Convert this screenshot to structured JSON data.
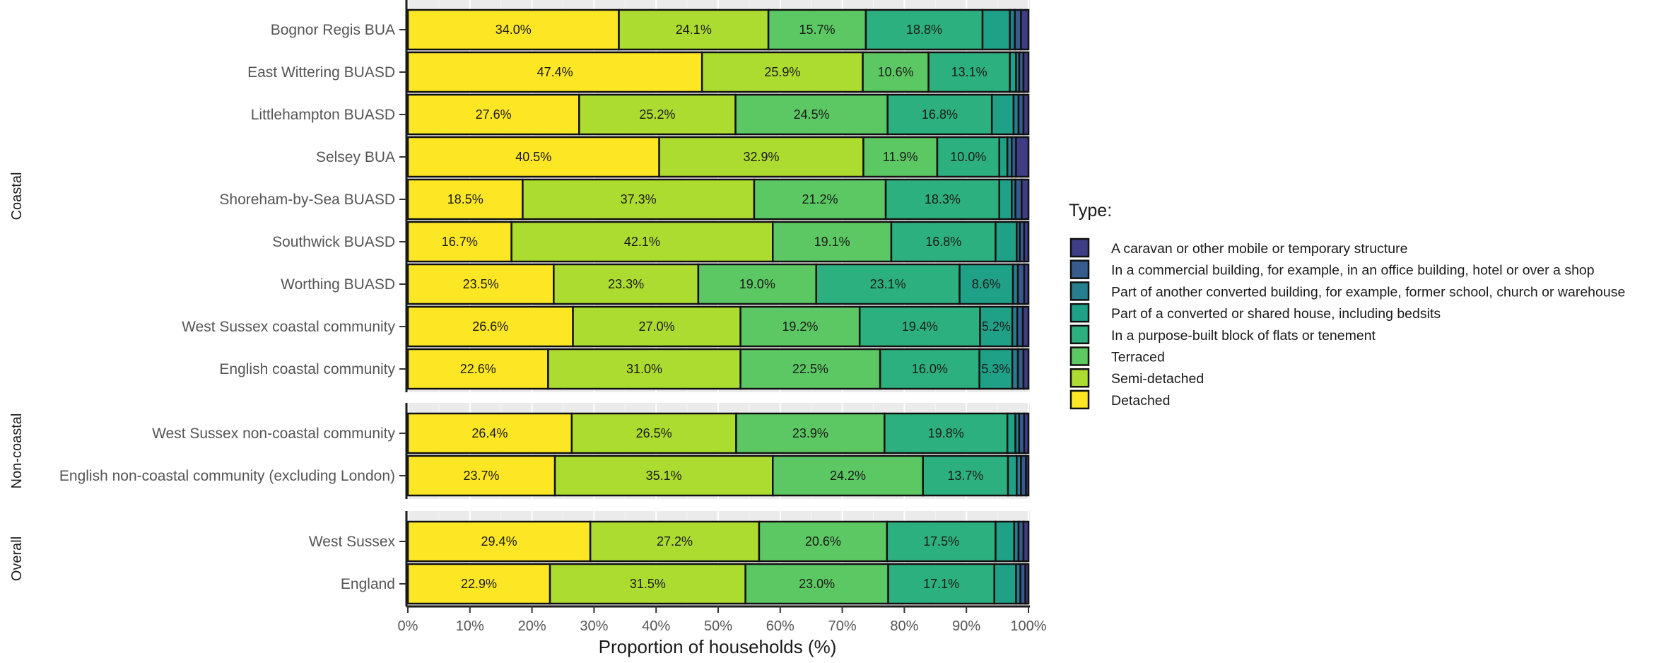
{
  "chart_data": {
    "type": "bar",
    "orientation": "horizontal",
    "stacked": true,
    "xlabel": "Proportion of households (%)",
    "xlim": [
      0,
      100
    ],
    "x_ticks": [
      "0%",
      "10%",
      "20%",
      "30%",
      "40%",
      "50%",
      "60%",
      "70%",
      "80%",
      "90%",
      "100%"
    ],
    "legend": {
      "title": "Type:",
      "placement": "right",
      "entries": [
        {
          "name": "A caravan or other mobile or temporary structure",
          "color": "#3e3d86"
        },
        {
          "name": "In a commercial building, for example, in an office building, hotel or over a shop",
          "color": "#365b8c"
        },
        {
          "name": "Part of another converted building, for example, former school, church or warehouse",
          "color": "#277e8e"
        },
        {
          "name": "Part of a converted or shared house, including bedsits",
          "color": "#1fa187"
        },
        {
          "name": "In a purpose-built block of flats or tenement",
          "color": "#2db07f"
        },
        {
          "name": "Terraced",
          "color": "#5cc863"
        },
        {
          "name": "Semi-detached",
          "color": "#addc30"
        },
        {
          "name": "Detached",
          "color": "#fde725"
        }
      ]
    },
    "series_order": [
      "Detached",
      "Semi-detached",
      "Terraced",
      "In a purpose-built block of flats or tenement",
      "Part of a converted or shared house, including bedsits",
      "Part of another converted building, for example, former school, church or warehouse",
      "In a commercial building, for example, in an office building, hotel or over a shop",
      "A caravan or other mobile or temporary structure"
    ],
    "series_colors": [
      "#fde725",
      "#addc30",
      "#5cc863",
      "#2db07f",
      "#1fa187",
      "#277e8e",
      "#365b8c",
      "#3e3d86"
    ],
    "facets": [
      {
        "label": "Coastal",
        "rows": [
          {
            "name": "Bognor Regis BUA",
            "values": [
              34.0,
              24.1,
              15.7,
              18.8,
              4.4,
              0.8,
              1.0,
              1.2
            ],
            "labels": [
              "34.0%",
              "24.1%",
              "15.7%",
              "18.8%",
              "",
              "",
              "",
              ""
            ]
          },
          {
            "name": "East Wittering BUASD",
            "values": [
              47.4,
              25.9,
              10.6,
              13.1,
              1.0,
              0.5,
              0.7,
              0.8
            ],
            "labels": [
              "47.4%",
              "25.9%",
              "10.6%",
              "13.1%",
              "",
              "",
              "",
              ""
            ]
          },
          {
            "name": "Littlehampton BUASD",
            "values": [
              27.6,
              25.2,
              24.5,
              16.8,
              3.5,
              0.8,
              0.8,
              0.8
            ],
            "labels": [
              "27.6%",
              "25.2%",
              "24.5%",
              "16.8%",
              "",
              "",
              "",
              ""
            ]
          },
          {
            "name": "Selsey BUA",
            "values": [
              40.5,
              32.9,
              11.9,
              10.0,
              1.3,
              0.7,
              0.7,
              2.0
            ],
            "labels": [
              "40.5%",
              "32.9%",
              "11.9%",
              "10.0%",
              "",
              "",
              "",
              ""
            ]
          },
          {
            "name": "Shoreham-by-Sea BUASD",
            "values": [
              18.5,
              37.3,
              21.2,
              18.3,
              2.0,
              0.6,
              1.0,
              1.1
            ],
            "labels": [
              "18.5%",
              "37.3%",
              "21.2%",
              "18.3%",
              "",
              "",
              "",
              ""
            ]
          },
          {
            "name": "Southwick BUASD",
            "values": [
              16.7,
              42.1,
              19.1,
              16.8,
              3.4,
              0.5,
              0.7,
              0.7
            ],
            "labels": [
              "16.7%",
              "42.1%",
              "19.1%",
              "16.8%",
              "",
              "",
              "",
              ""
            ]
          },
          {
            "name": "Worthing BUASD",
            "values": [
              23.5,
              23.3,
              19.0,
              23.1,
              8.6,
              0.8,
              1.0,
              0.7
            ],
            "labels": [
              "23.5%",
              "23.3%",
              "19.0%",
              "23.1%",
              "8.6%",
              "",
              "",
              ""
            ]
          },
          {
            "name": "West Sussex coastal community",
            "values": [
              26.6,
              27.0,
              19.2,
              19.4,
              5.2,
              0.8,
              0.9,
              0.9
            ],
            "labels": [
              "26.6%",
              "27.0%",
              "19.2%",
              "19.4%",
              "5.2%",
              "",
              "",
              ""
            ]
          },
          {
            "name": "English coastal community",
            "values": [
              22.6,
              31.0,
              22.5,
              16.0,
              5.3,
              0.9,
              0.9,
              0.8
            ],
            "labels": [
              "22.6%",
              "31.0%",
              "22.5%",
              "16.0%",
              "5.3%",
              "",
              "",
              ""
            ]
          }
        ]
      },
      {
        "label": "Non-coastal",
        "rows": [
          {
            "name": "West Sussex non-coastal community",
            "values": [
              26.4,
              26.5,
              23.9,
              19.8,
              1.3,
              0.6,
              0.8,
              0.7
            ],
            "labels": [
              "26.4%",
              "26.5%",
              "23.9%",
              "19.8%",
              "",
              "",
              "",
              ""
            ]
          },
          {
            "name": "English non-coastal community (excluding London)",
            "values": [
              23.7,
              35.1,
              24.2,
              13.7,
              1.4,
              0.7,
              0.8,
              0.4
            ],
            "labels": [
              "23.7%",
              "35.1%",
              "24.2%",
              "13.7%",
              "",
              "",
              "",
              ""
            ]
          }
        ]
      },
      {
        "label": "Overall",
        "rows": [
          {
            "name": "West Sussex",
            "values": [
              29.4,
              27.2,
              20.6,
              17.5,
              3.0,
              0.7,
              0.8,
              0.8
            ],
            "labels": [
              "29.4%",
              "27.2%",
              "20.6%",
              "17.5%",
              "",
              "",
              "",
              ""
            ]
          },
          {
            "name": "England",
            "values": [
              22.9,
              31.5,
              23.0,
              17.1,
              3.5,
              0.7,
              0.8,
              0.5
            ],
            "labels": [
              "22.9%",
              "31.5%",
              "23.0%",
              "17.1%",
              "",
              "",
              "",
              ""
            ]
          }
        ]
      }
    ]
  }
}
